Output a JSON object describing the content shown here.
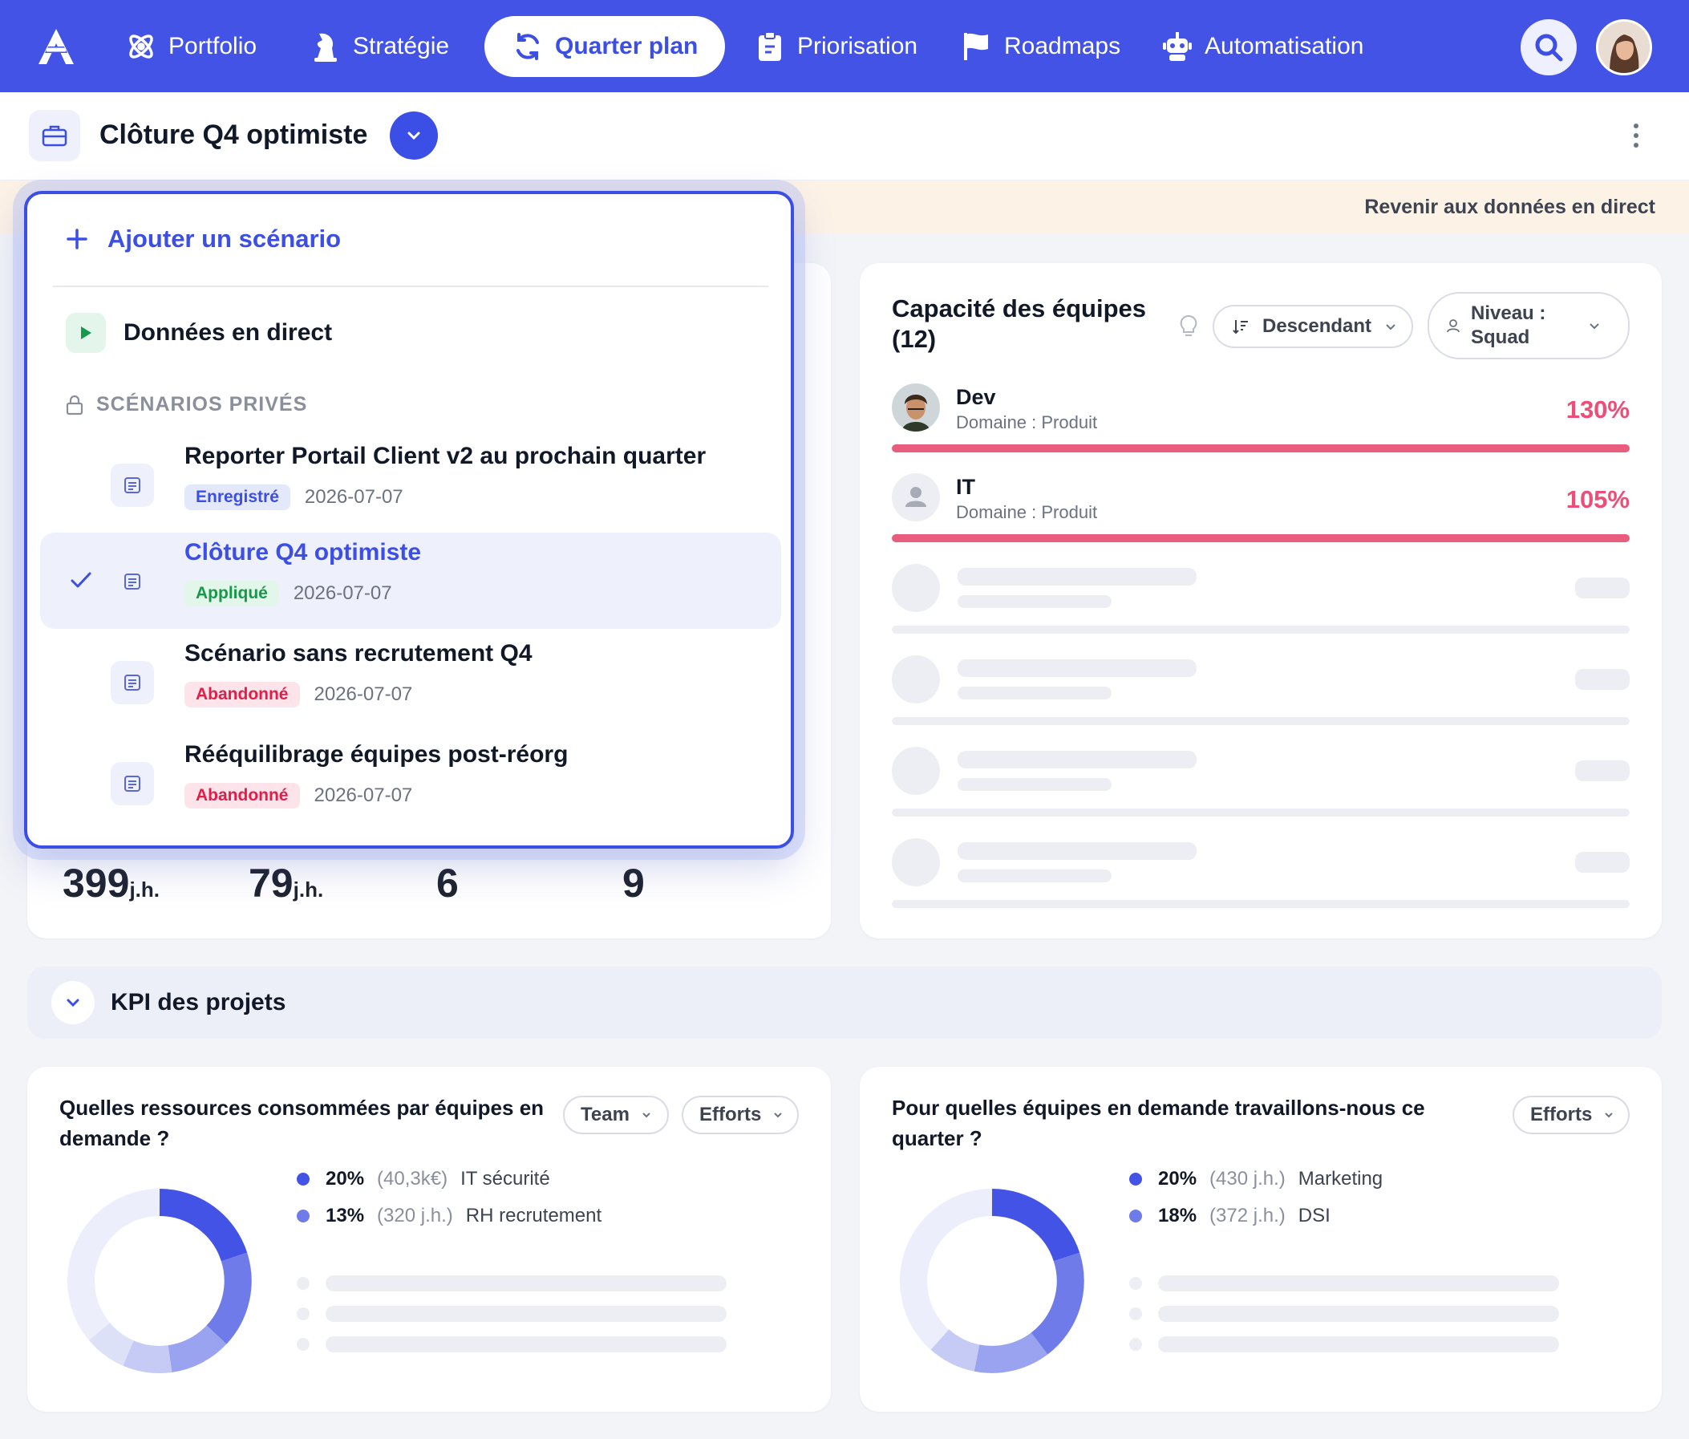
{
  "nav": {
    "items": [
      {
        "label": "Portfolio",
        "icon": "atom-icon",
        "active": false
      },
      {
        "label": "Stratégie",
        "icon": "chess-icon",
        "active": false
      },
      {
        "label": "Quarter plan",
        "icon": "cycle-icon",
        "active": true
      },
      {
        "label": "Priorisation",
        "icon": "clipboard-icon",
        "active": false
      },
      {
        "label": "Roadmaps",
        "icon": "flag-icon",
        "active": false
      },
      {
        "label": "Automatisation",
        "icon": "robot-icon",
        "active": false
      }
    ]
  },
  "header": {
    "scenario_title": "Clôture Q4 optimiste"
  },
  "banner": {
    "link": "Revenir aux données en direct"
  },
  "dropdown": {
    "add_label": "Ajouter un scénario",
    "live_label": "Données en direct",
    "section_label": "SCÉNARIOS PRIVÉS",
    "items": [
      {
        "name": "Reporter Portail Client v2 au prochain quarter",
        "status": "Enregistré",
        "status_type": "saved",
        "date": "2026-07-07",
        "selected": false
      },
      {
        "name": "Clôture Q4 optimiste",
        "status": "Appliqué",
        "status_type": "applied",
        "date": "2026-07-07",
        "selected": true
      },
      {
        "name": "Scénario sans recrutement Q4",
        "status": "Abandonné",
        "status_type": "abandoned",
        "date": "2026-07-07",
        "selected": false
      },
      {
        "name": "Rééquilibrage équipes post-réorg",
        "status": "Abandonné",
        "status_type": "abandoned",
        "date": "2026-07-07",
        "selected": false
      }
    ]
  },
  "stats": [
    {
      "value": "399",
      "unit": "j.h."
    },
    {
      "value": "79",
      "unit": "j.h."
    },
    {
      "value": "6",
      "unit": ""
    },
    {
      "value": "9",
      "unit": ""
    }
  ],
  "capacity": {
    "title": "Capacité des équipes (12)",
    "sort_label": "Descendant",
    "level_label": "Niveau : Squad",
    "teams": [
      {
        "name": "Dev",
        "domain": "Domaine : Produit",
        "pct": "130%",
        "fill": 1.0
      },
      {
        "name": "IT",
        "domain": "Domaine : Produit",
        "pct": "105%",
        "fill": 1.0
      }
    ]
  },
  "kpi": {
    "title": "KPI des projets"
  },
  "resources_card": {
    "title": "Quelles ressources consommées par équipes en demande ?",
    "filter1": "Team",
    "filter2": "Efforts",
    "legend": [
      {
        "pct": "20%",
        "value": "(40,3k€)",
        "name": "IT sécurité",
        "color": "#4353e6"
      },
      {
        "pct": "13%",
        "value": "(320 j.h.)",
        "name": "RH recrutement",
        "color": "#6e7be8"
      }
    ]
  },
  "demand_card": {
    "title": "Pour quelles équipes en demande travaillons-nous ce quarter ?",
    "filter": "Efforts",
    "legend": [
      {
        "pct": "20%",
        "value": "(430 j.h.)",
        "name": "Marketing",
        "color": "#4353e6"
      },
      {
        "pct": "18%",
        "value": "(372 j.h.)",
        "name": "DSI",
        "color": "#6e7be8"
      }
    ]
  },
  "colors": {
    "brand": "#4353e6",
    "danger": "#ec4e78",
    "applied": "#17984b",
    "abandoned": "#e11d48"
  }
}
